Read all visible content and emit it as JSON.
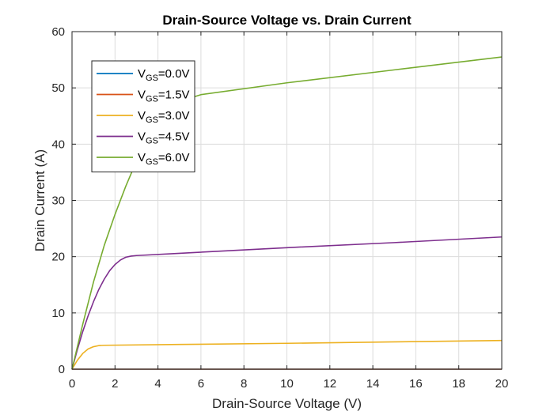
{
  "chart_data": {
    "type": "line",
    "title": "Drain-Source Voltage vs. Drain Current",
    "xlabel": "Drain-Source Voltage (V)",
    "ylabel": "Drain Current (A)",
    "xlim": [
      0,
      20
    ],
    "ylim": [
      0,
      60
    ],
    "xticks": [
      0,
      2,
      4,
      6,
      8,
      10,
      12,
      14,
      16,
      18,
      20
    ],
    "yticks": [
      0,
      10,
      20,
      30,
      40,
      50,
      60
    ],
    "grid": true,
    "legend_position": "top-left",
    "series": [
      {
        "name_main": "V",
        "name_sub": "GS",
        "name_rest": "=0.0V",
        "color": "#0072BD",
        "x": [
          0,
          20
        ],
        "y": [
          0,
          0
        ]
      },
      {
        "name_main": "V",
        "name_sub": "GS",
        "name_rest": "=1.5V",
        "color": "#D95319",
        "x": [
          0,
          20
        ],
        "y": [
          0,
          0
        ]
      },
      {
        "name_main": "V",
        "name_sub": "GS",
        "name_rest": "=3.0V",
        "color": "#EDB120",
        "x": [
          0,
          0.25,
          0.5,
          0.75,
          1.0,
          1.25,
          1.5,
          5,
          10,
          15,
          20
        ],
        "y": [
          0,
          1.6,
          2.8,
          3.6,
          4.0,
          4.2,
          4.25,
          4.4,
          4.6,
          4.85,
          5.1
        ]
      },
      {
        "name_main": "V",
        "name_sub": "GS",
        "name_rest": "=4.5V",
        "color": "#7E2F8E",
        "x": [
          0,
          0.25,
          0.5,
          0.75,
          1.0,
          1.25,
          1.5,
          1.75,
          2.0,
          2.25,
          2.5,
          2.75,
          3.0,
          5,
          10,
          15,
          20
        ],
        "y": [
          0,
          3.5,
          6.7,
          9.5,
          12.0,
          14.2,
          16.0,
          17.5,
          18.6,
          19.4,
          19.9,
          20.1,
          20.2,
          20.6,
          21.6,
          22.5,
          23.5
        ]
      },
      {
        "name_main": "V",
        "name_sub": "GS",
        "name_rest": "=6.0V",
        "color": "#77AC30",
        "x": [
          0,
          0.5,
          1.0,
          1.5,
          2.0,
          2.5,
          3.0,
          3.5,
          4.0,
          4.5,
          5.0,
          5.5,
          6.0,
          10,
          15,
          20
        ],
        "y": [
          0,
          8,
          15.5,
          22.0,
          27.5,
          32.5,
          37.0,
          40.5,
          43.5,
          45.8,
          47.3,
          48.2,
          48.8,
          50.9,
          53.2,
          55.5
        ]
      }
    ]
  }
}
